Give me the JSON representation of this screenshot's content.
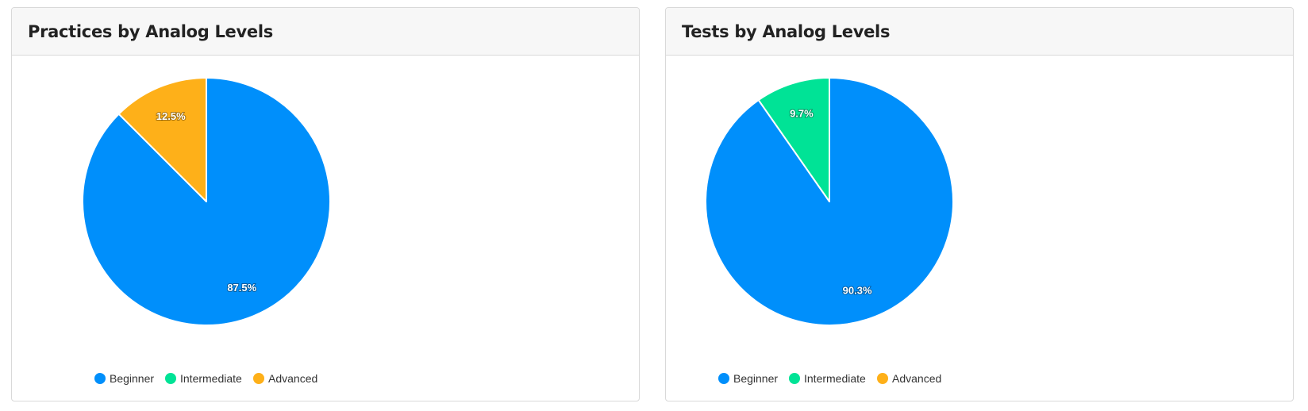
{
  "chart_data": [
    {
      "type": "pie",
      "title": "Practices by Analog Levels",
      "categories": [
        "Beginner",
        "Intermediate",
        "Advanced"
      ],
      "values": [
        87.5,
        0,
        12.5
      ],
      "labels": [
        "87.5%",
        "",
        "12.5%"
      ],
      "colors": [
        "#008ffb",
        "#00e396",
        "#feb019"
      ],
      "legend_position": "bottom"
    },
    {
      "type": "pie",
      "title": "Tests by Analog Levels",
      "categories": [
        "Beginner",
        "Intermediate",
        "Advanced"
      ],
      "values": [
        90.3,
        9.7,
        0
      ],
      "labels": [
        "90.3%",
        "9.7%",
        ""
      ],
      "colors": [
        "#008ffb",
        "#00e396",
        "#feb019"
      ],
      "legend_position": "bottom"
    }
  ]
}
